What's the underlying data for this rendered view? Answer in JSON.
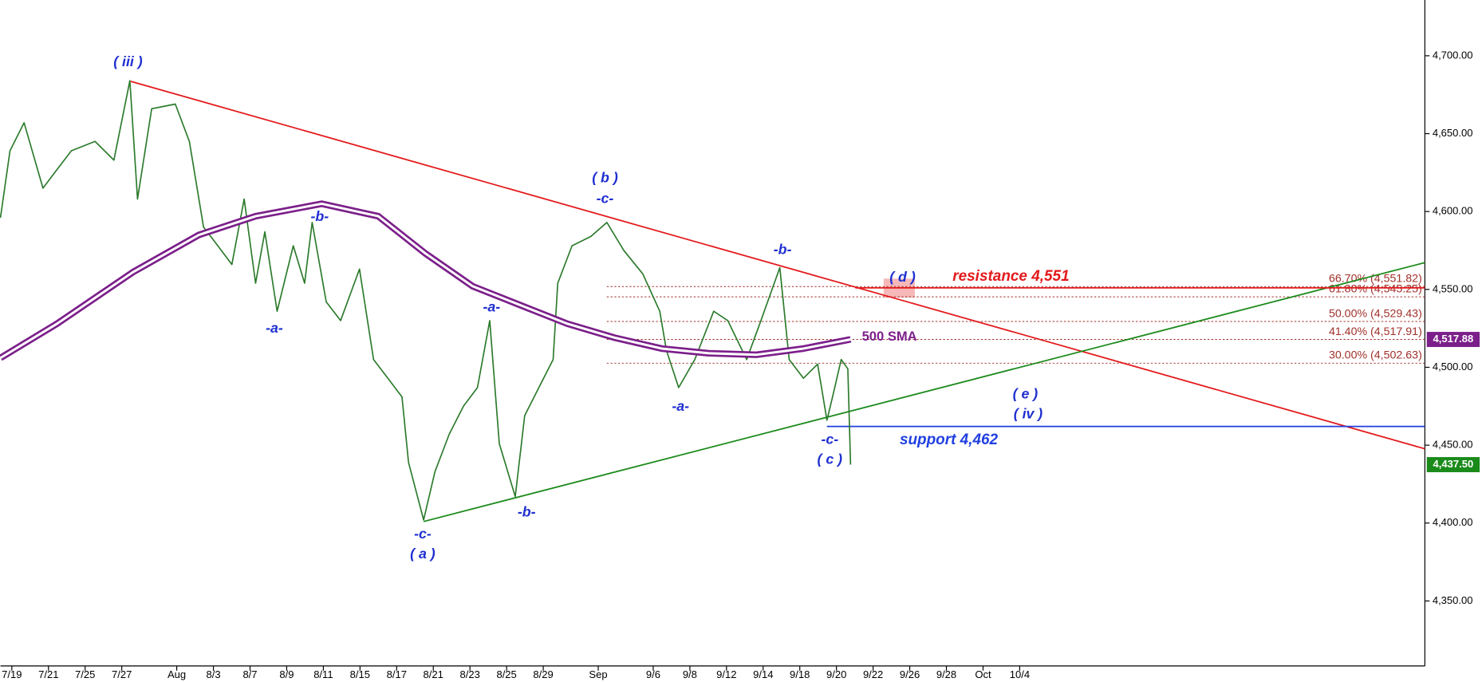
{
  "chart_data": {
    "type": "line",
    "xlim": [
      -0.62,
      77.11
    ],
    "ylim": [
      4311.3,
      4735.8
    ],
    "xticks": [
      {
        "value": 0,
        "label": "7/19"
      },
      {
        "value": 2,
        "label": "7/21"
      },
      {
        "value": 4,
        "label": "7/25"
      },
      {
        "value": 6,
        "label": "7/27"
      },
      {
        "value": 9,
        "label": "Aug"
      },
      {
        "value": 11,
        "label": "8/3"
      },
      {
        "value": 13,
        "label": "8/7"
      },
      {
        "value": 15,
        "label": "8/9"
      },
      {
        "value": 17,
        "label": "8/11"
      },
      {
        "value": 19,
        "label": "8/15"
      },
      {
        "value": 21,
        "label": "8/17"
      },
      {
        "value": 23,
        "label": "8/21"
      },
      {
        "value": 25,
        "label": "8/23"
      },
      {
        "value": 27,
        "label": "8/25"
      },
      {
        "value": 29,
        "label": "8/29"
      },
      {
        "value": 32,
        "label": "Sep"
      },
      {
        "value": 35,
        "label": "9/6"
      },
      {
        "value": 37,
        "label": "9/8"
      },
      {
        "value": 39,
        "label": "9/12"
      },
      {
        "value": 41,
        "label": "9/14"
      },
      {
        "value": 43,
        "label": "9/18"
      },
      {
        "value": 45,
        "label": "9/20"
      },
      {
        "value": 47,
        "label": "9/22"
      },
      {
        "value": 49,
        "label": "9/26"
      },
      {
        "value": 51,
        "label": "9/28"
      },
      {
        "value": 53,
        "label": "Oct"
      },
      {
        "value": 55,
        "label": "10/4"
      }
    ],
    "yticks": [
      {
        "value": 4350,
        "label": "4,350.00"
      },
      {
        "value": 4400,
        "label": "4,400.00"
      },
      {
        "value": 4450,
        "label": "4,450.00"
      },
      {
        "value": 4500,
        "label": "4,500.00"
      },
      {
        "value": 4550,
        "label": "4,550.00"
      },
      {
        "value": 4600,
        "label": "4,600.00"
      },
      {
        "value": 4650,
        "label": "4,650.00"
      },
      {
        "value": 4700,
        "label": "4,700.00"
      }
    ],
    "series": [
      {
        "color": "#2b7a2b",
        "x": [
          -0.62,
          -0.1,
          0.67,
          1.7,
          2.47,
          3.25,
          4.54,
          5.57,
          6.44,
          6.86,
          7.63,
          8.92,
          9.69,
          10.46,
          11.24,
          12.01,
          12.68,
          13.3,
          13.81,
          14.48,
          15.36,
          15.98,
          16.39,
          17.16,
          17.94,
          18.97,
          19.74,
          20.52,
          21.29,
          21.65,
          22.47,
          23.09,
          23.87,
          24.64,
          25.41,
          26.08,
          26.6,
          27.47,
          27.99,
          28.76,
          29.54,
          29.79,
          30.57,
          31.6,
          32.47,
          33.4,
          34.43,
          35.36,
          35.72,
          36.39,
          37.27,
          38.3,
          39.07,
          40.1,
          40.88,
          41.91,
          42.42,
          43.2,
          43.97,
          44.48,
          44.85,
          45.26,
          45.62,
          45.77
        ],
        "values": [
          4596,
          4639,
          4657,
          4615,
          4627,
          4639,
          4645,
          4633,
          4684,
          4608,
          4666,
          4669,
          4645,
          4590,
          4578,
          4566,
          4608,
          4554,
          4587,
          4536,
          4578,
          4554,
          4593,
          4542,
          4530,
          4563,
          4505,
          4493,
          4481,
          4439,
          4402,
          4433,
          4457,
          4475,
          4487,
          4530,
          4451,
          4417,
          4469,
          4487,
          4505,
          4554,
          4578,
          4584,
          4593,
          4575,
          4560,
          4536,
          4511,
          4487,
          4505,
          4536,
          4530,
          4505,
          4530,
          4564,
          4505,
          4493,
          4502,
          4466,
          4484,
          4505,
          4499,
          4437.5
        ]
      },
      {
        "name": "500 SMA",
        "color": "#7b1f8a",
        "x": [
          -0.62,
          2.47,
          6.6,
          10.21,
          13.3,
          16.91,
          20.0,
          22.58,
          25.15,
          27.73,
          30.31,
          32.89,
          35.46,
          38.04,
          40.62,
          43.2,
          45.77
        ],
        "values": [
          4506,
          4528,
          4561,
          4585,
          4597,
          4605,
          4597,
          4573,
          4552,
          4540,
          4528,
          4519,
          4512,
          4509,
          4508,
          4512,
          4517.88
        ]
      }
    ],
    "trendlines": [
      {
        "color": "#e31a1c",
        "x": [
          6.49,
          77.11
        ],
        "values": [
          4683.6,
          4447.7
        ]
      },
      {
        "color": "#1a8a1a",
        "x": [
          22.47,
          77.11
        ],
        "values": [
          4401.0,
          4567.2
        ]
      }
    ],
    "levels": [
      {
        "text": "resistance 4,551",
        "value": 4551,
        "color": "#e31a1c",
        "x": [
          46.03,
          77.11
        ]
      },
      {
        "text": "support 4,462",
        "value": 4462,
        "color": "#1f3fe0",
        "x": [
          44.48,
          77.11
        ]
      }
    ],
    "fib": {
      "color": "#a0302a",
      "x": 32.47,
      "levels": [
        {
          "label": "66.70% (4,551.82)",
          "value": 4551.82
        },
        {
          "label": "61.80% (4,545.25)",
          "value": 4545.25
        },
        {
          "label": "50.00% (4,529.43)",
          "value": 4529.43
        },
        {
          "label": "41.40% (4,517.91)",
          "value": 4517.91
        },
        {
          "label": "30.00% (4,502.63)",
          "value": 4502.63
        }
      ]
    },
    "wave_labels": [
      "( iii )",
      "( b )",
      "-c-",
      "-b-",
      "-a-",
      "-a-",
      "-b-",
      "-a-",
      "-c-",
      "( a )",
      "-b-",
      "-c-",
      "( c )",
      "( d )",
      "( e )",
      "( iv )"
    ],
    "price_tags": [
      {
        "label": "4,517.88",
        "value": 4517.88,
        "color": "#7b1f8a"
      },
      {
        "label": "4,437.50",
        "value": 4437.5,
        "color": "#1a8a1a"
      }
    ]
  }
}
